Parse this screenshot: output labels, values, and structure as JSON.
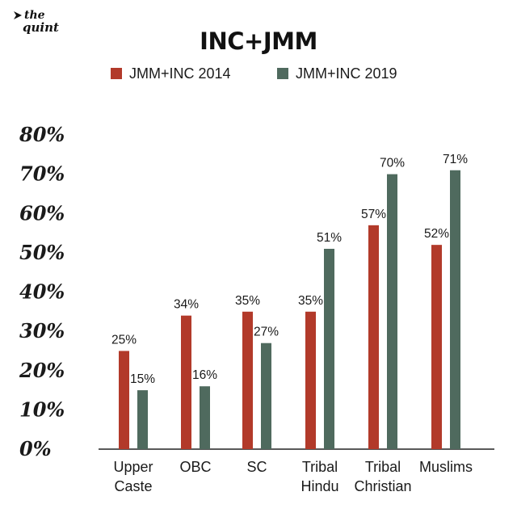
{
  "brand": {
    "logo_top": "the",
    "logo_bottom": "quint"
  },
  "colors": {
    "series_2014": "#b23a2a",
    "series_2019": "#4f6a5e",
    "axis": "#222222"
  },
  "chart_data": {
    "type": "bar",
    "title": "INC+JMM",
    "categories": [
      [
        "Upper",
        "Caste"
      ],
      [
        "OBC"
      ],
      [
        "SC"
      ],
      [
        "Tribal",
        "Hindu"
      ],
      [
        "Tribal",
        "Christian"
      ],
      [
        "Muslims"
      ]
    ],
    "series": [
      {
        "name": "JMM+INC 2014",
        "values": [
          25,
          34,
          35,
          35,
          57,
          52
        ],
        "labels": [
          "25%",
          "34%",
          "35%",
          "35%",
          "57%",
          "52%"
        ]
      },
      {
        "name": "JMM+INC 2019",
        "values": [
          15,
          16,
          27,
          51,
          70,
          71
        ],
        "labels": [
          "15%",
          "16%",
          "27%",
          "51%",
          "70%",
          "71%"
        ]
      }
    ],
    "yticks": [
      "0%",
      "10%",
      "20%",
      "30%",
      "40%",
      "50%",
      "60%",
      "70%",
      "80%"
    ],
    "ylim": [
      0,
      80
    ],
    "legend_position": "top",
    "grid": false
  }
}
